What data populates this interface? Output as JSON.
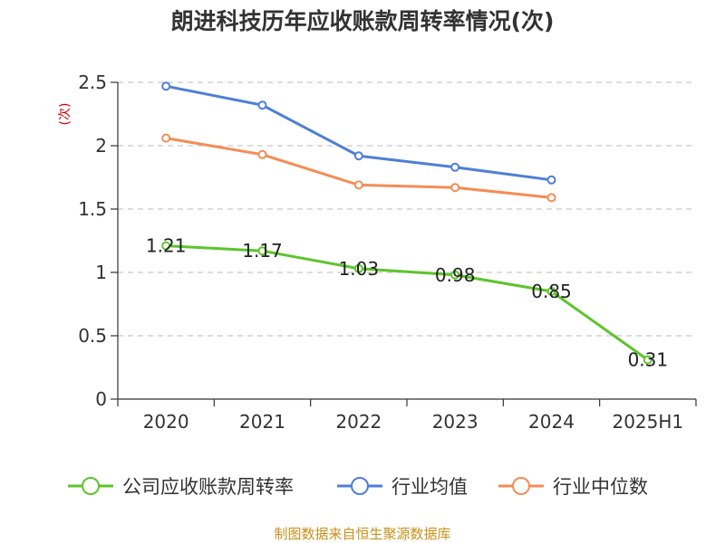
{
  "chart_data": {
    "type": "line",
    "title": "朗进科技历年应收账款周转率情况(次)",
    "ylabel": "(次)",
    "xlabel": "",
    "categories": [
      "2020",
      "2021",
      "2022",
      "2023",
      "2024",
      "2025H1"
    ],
    "ylim": [
      0,
      2.5
    ],
    "yticks": [
      "0",
      "0.5",
      "1",
      "1.5",
      "2",
      "2.5"
    ],
    "ytick_values": [
      0,
      0.5,
      1,
      1.5,
      2,
      2.5
    ],
    "grid": true,
    "legend_position": "bottom",
    "series": [
      {
        "name": "公司应收账款周转率",
        "color": "#5cc52a",
        "values": [
          1.21,
          1.17,
          1.03,
          0.98,
          0.85,
          0.31
        ],
        "labels": [
          "1.21",
          "1.17",
          "1.03",
          "0.98",
          "0.85",
          "0.31"
        ]
      },
      {
        "name": "行业均值",
        "color": "#4e7fd6",
        "values": [
          2.47,
          2.32,
          1.92,
          1.83,
          1.73,
          null
        ]
      },
      {
        "name": "行业中位数",
        "color": "#f58c55",
        "values": [
          2.06,
          1.93,
          1.69,
          1.67,
          1.59,
          null
        ]
      }
    ]
  },
  "source": "制图数据来自恒生聚源数据库"
}
